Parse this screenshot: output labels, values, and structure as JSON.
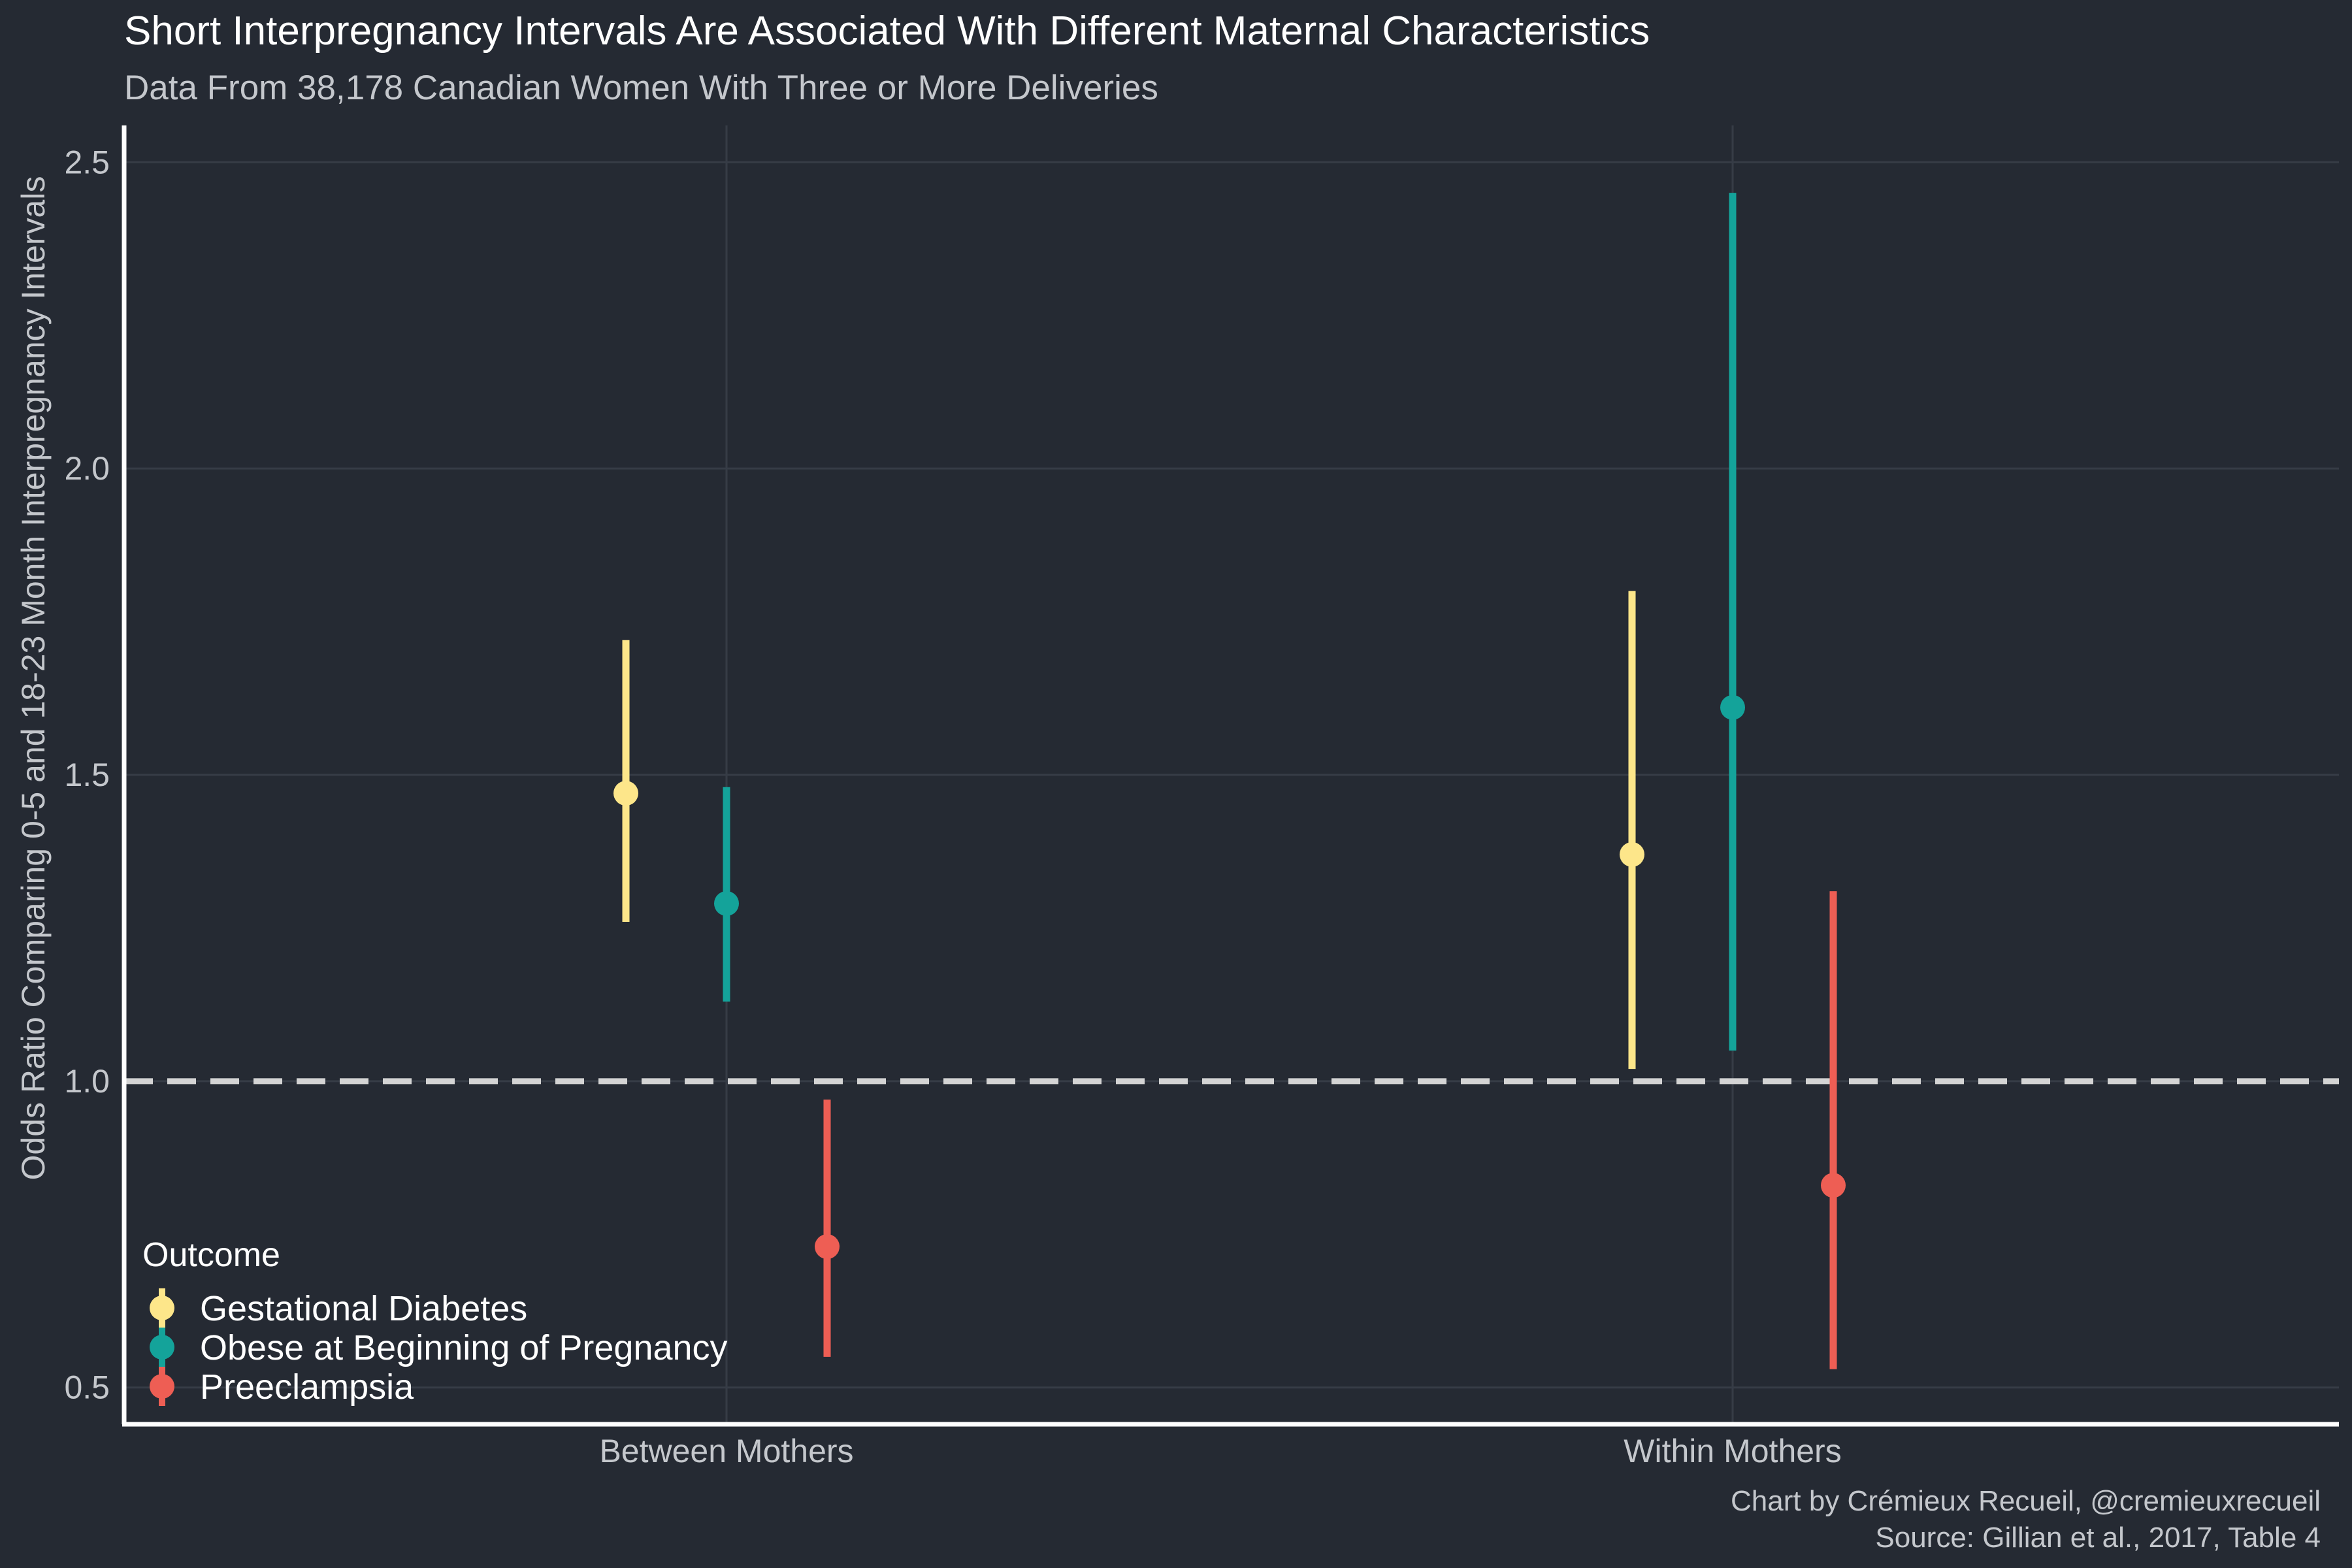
{
  "chart_data": {
    "type": "scatter",
    "subtype": "point-range",
    "title": "Short Interpregnancy Intervals Are Associated With Different Maternal Characteristics",
    "subtitle": "Data From 38,178 Canadian Women With Three or More Deliveries",
    "xlabel": "",
    "ylabel": "Odds Ratio Comparing 0-5 and 18-23 Month Interpregnancy Intervals",
    "categories": [
      "Between Mothers",
      "Within Mothers"
    ],
    "ylim": [
      0.44,
      2.56
    ],
    "yticks": [
      0.5,
      1.0,
      1.5,
      2.0,
      2.5
    ],
    "ytick_labels": [
      "0.5",
      "1.0",
      "1.5",
      "2.0",
      "2.5"
    ],
    "reference_line": 1.0,
    "grid": true,
    "legend": {
      "title": "Outcome",
      "position": "bottom-left"
    },
    "series": [
      {
        "name": "Gestational Diabetes",
        "color": "#fde68a",
        "values": [
          1.47,
          1.37
        ],
        "lower": [
          1.26,
          1.02
        ],
        "upper": [
          1.72,
          1.8
        ]
      },
      {
        "name": "Obese at Beginning of Pregnancy",
        "color": "#14a39a",
        "values": [
          1.29,
          1.61
        ],
        "lower": [
          1.13,
          1.05
        ],
        "upper": [
          1.48,
          2.45
        ]
      },
      {
        "name": "Preeclampsia",
        "color": "#ee5e54",
        "values": [
          0.73,
          0.83
        ],
        "lower": [
          0.55,
          0.53
        ],
        "upper": [
          0.97,
          1.31
        ]
      }
    ],
    "caption": [
      "Chart by Crémieux Recueil, @cremieuxrecueil",
      "Source: Gillian et al., 2017, Table 4"
    ]
  }
}
